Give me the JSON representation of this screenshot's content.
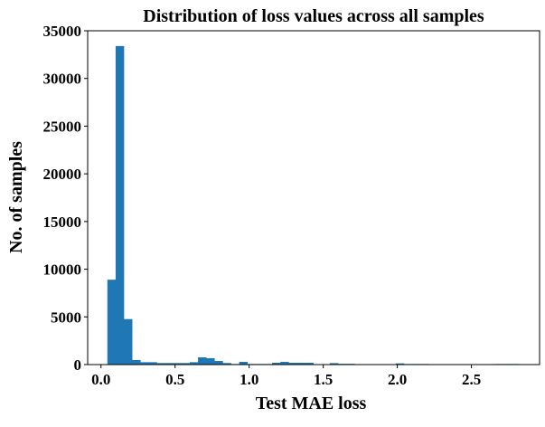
{
  "chart_data": {
    "type": "bar",
    "title": "Distribution of loss values across all samples",
    "xlabel": "Test MAE loss",
    "ylabel": "No. of samples",
    "xlim": [
      -0.09,
      2.96
    ],
    "ylim": [
      0,
      35000
    ],
    "xticks": [
      "0.0",
      "0.5",
      "1.0",
      "1.5",
      "2.0",
      "2.5"
    ],
    "yticks": [
      "0",
      "5000",
      "10000",
      "15000",
      "20000",
      "25000",
      "30000",
      "35000"
    ],
    "bin_start": 0.043,
    "bin_width": 0.0556,
    "values": [
      8900,
      33400,
      4770,
      480,
      250,
      250,
      160,
      160,
      160,
      160,
      250,
      760,
      670,
      380,
      160,
      60,
      290,
      60,
      60,
      60,
      190,
      290,
      190,
      190,
      190,
      40,
      40,
      150,
      80,
      80,
      20,
      20,
      20,
      20,
      20,
      120,
      60,
      60,
      60,
      10,
      10,
      10,
      10,
      10,
      10,
      10,
      10,
      60,
      60,
      60
    ],
    "bar_color": "#1f77b4",
    "grid": false
  }
}
